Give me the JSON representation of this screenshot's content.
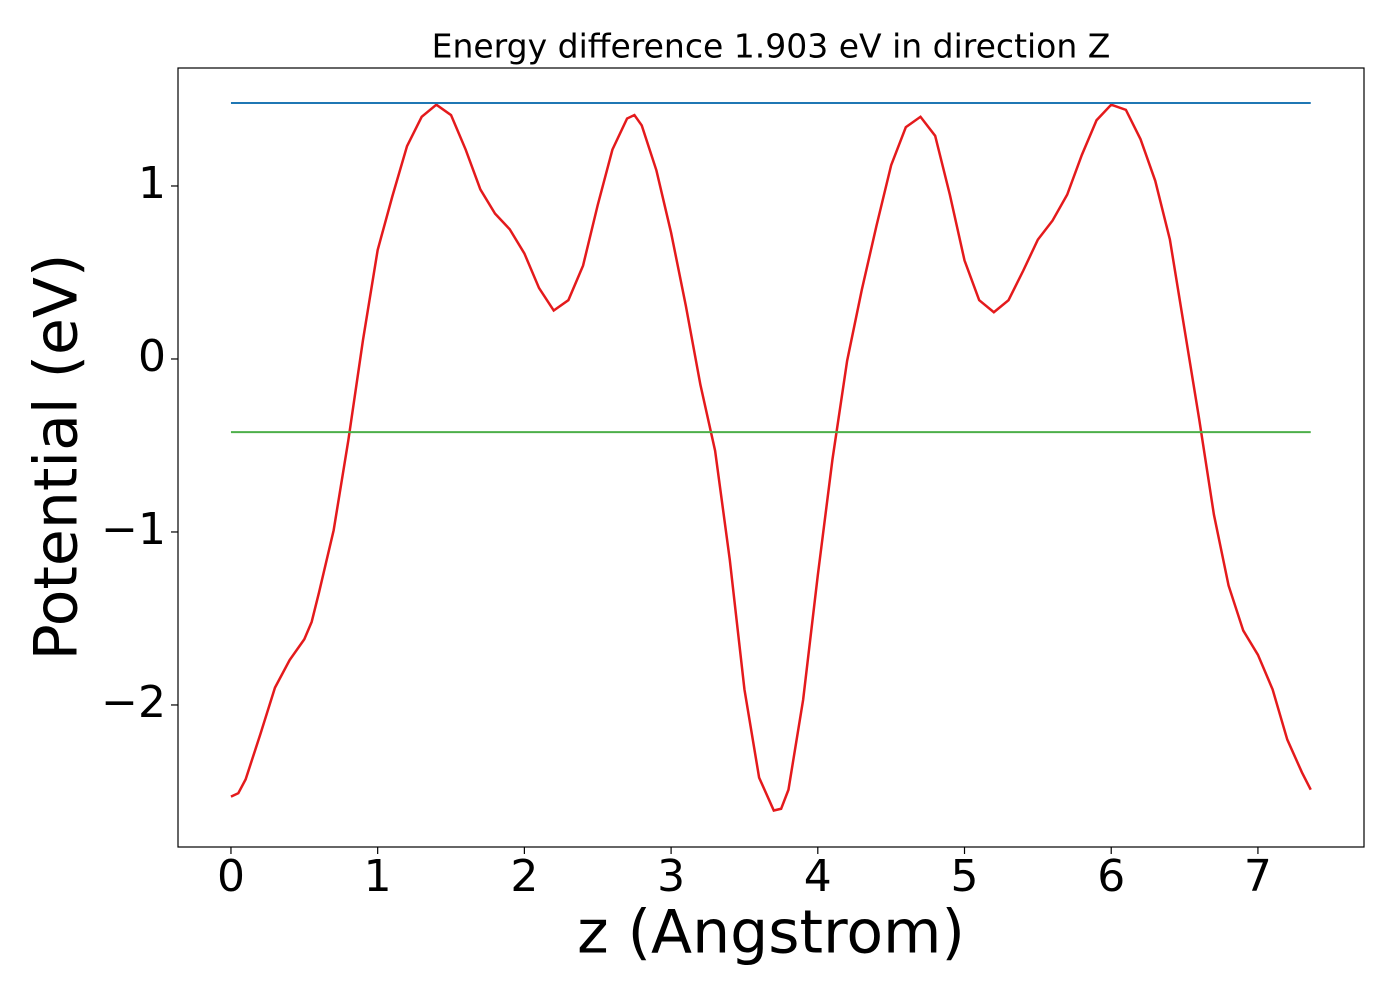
{
  "chart_data": {
    "type": "line",
    "title": "Energy difference 1.903 eV in direction Z",
    "xlabel": "z (Angstrom)",
    "ylabel": "Potential (eV)",
    "xlim": [
      -0.361,
      7.723
    ],
    "ylim": [
      -2.821,
      1.682
    ],
    "xticks": [
      0,
      1,
      2,
      3,
      4,
      5,
      6,
      7
    ],
    "yticks": [
      {
        "value": -2,
        "label": "−2"
      },
      {
        "value": -1,
        "label": "−1"
      },
      0,
      1
    ],
    "series": [
      {
        "color": "#e41a1c",
        "x": [
          0,
          0.05,
          0.1,
          0.2,
          0.3,
          0.4,
          0.5,
          0.55,
          0.6,
          0.7,
          0.8,
          0.9,
          1.0,
          1.1,
          1.2,
          1.3,
          1.4,
          1.5,
          1.6,
          1.7,
          1.8,
          1.9,
          2.0,
          2.1,
          2.2,
          2.3,
          2.4,
          2.5,
          2.6,
          2.7,
          2.75,
          2.8,
          2.9,
          3.0,
          3.1,
          3.2,
          3.3,
          3.4,
          3.5,
          3.6,
          3.7,
          3.75,
          3.8,
          3.9,
          4.0,
          4.1,
          4.2,
          4.3,
          4.4,
          4.5,
          4.6,
          4.7,
          4.8,
          4.9,
          5.0,
          5.1,
          5.2,
          5.3,
          5.4,
          5.5,
          5.6,
          5.7,
          5.8,
          5.9,
          6.0,
          6.1,
          6.2,
          6.3,
          6.4,
          6.5,
          6.6,
          6.7,
          6.8,
          6.9,
          7.0,
          7.1,
          7.2,
          7.3,
          7.36
        ],
        "values": [
          -2.53,
          -2.51,
          -2.43,
          -2.17,
          -1.9,
          -1.74,
          -1.62,
          -1.52,
          -1.35,
          -0.99,
          -0.47,
          0.11,
          0.63,
          0.94,
          1.23,
          1.4,
          1.47,
          1.41,
          1.21,
          0.98,
          0.84,
          0.75,
          0.61,
          0.41,
          0.28,
          0.34,
          0.54,
          0.89,
          1.21,
          1.39,
          1.41,
          1.35,
          1.09,
          0.73,
          0.31,
          -0.15,
          -0.53,
          -1.16,
          -1.91,
          -2.42,
          -2.61,
          -2.6,
          -2.49,
          -1.97,
          -1.25,
          -0.58,
          -0.01,
          0.4,
          0.77,
          1.12,
          1.34,
          1.4,
          1.29,
          0.95,
          0.57,
          0.34,
          0.27,
          0.34,
          0.51,
          0.69,
          0.8,
          0.95,
          1.18,
          1.38,
          1.47,
          1.44,
          1.27,
          1.03,
          0.69,
          0.17,
          -0.35,
          -0.9,
          -1.31,
          -1.57,
          -1.71,
          -1.91,
          -2.2,
          -2.39,
          -2.49
        ]
      },
      {
        "color": "#1f77b4",
        "x": [
          0,
          7.36
        ],
        "values": [
          1.48,
          1.48
        ]
      },
      {
        "color": "#4daf4a",
        "x": [
          0,
          7.36
        ],
        "values": [
          -0.423,
          -0.423
        ]
      }
    ]
  }
}
